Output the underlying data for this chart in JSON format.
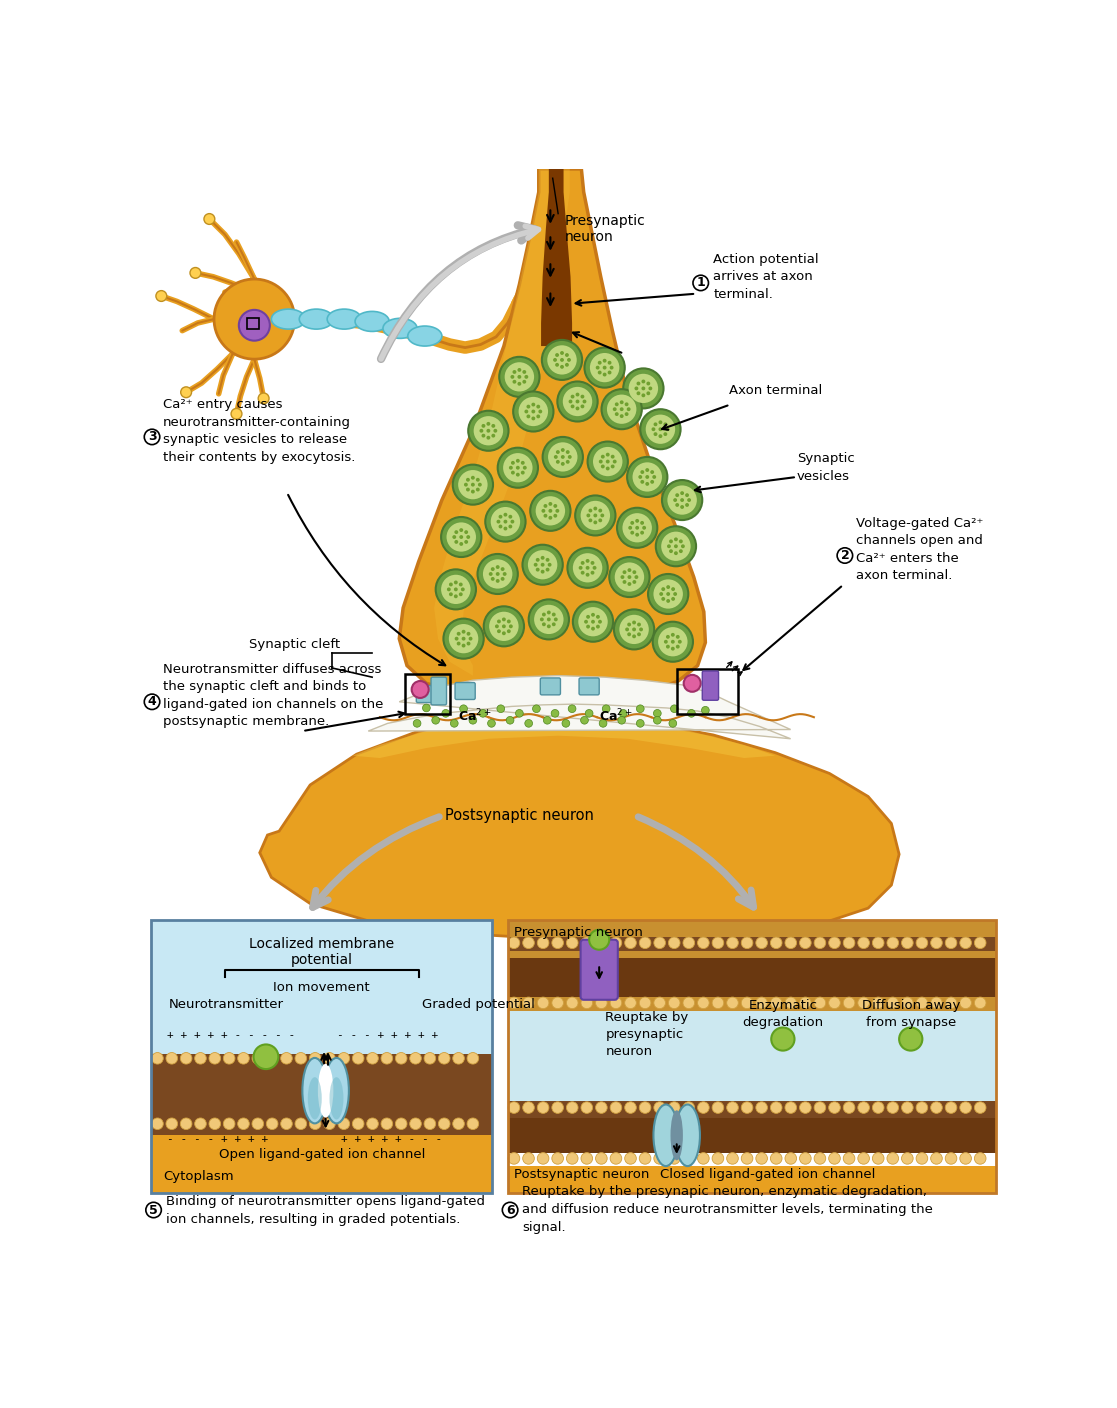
{
  "annotations": {
    "presynaptic_neuron": "Presynaptic\nneuron",
    "action_potential": "Action potential\narrives at axon\nterminal.",
    "axon_terminal": "Axon terminal",
    "synaptic_vesicles": "Synaptic\nvesicles",
    "ca2_entry": "Ca²⁺ entry causes\nneurotransmitter-containing\nsynaptic vesicles to release\ntheir contents by exocytosis.",
    "synaptic_cleft": "Synaptic cleft",
    "voltage_gated": "Voltage-gated Ca²⁺\nchannels open and\nCa²⁺ enters the\naxon terminal.",
    "neurotransmitter_diffuses": "Neurotransmitter diffuses across\nthe synaptic cleft and binds to\nligand-gated ion channels on the\npostsynaptic membrane.",
    "postsynaptic_neuron": "Postsynaptic neuron",
    "localized_membrane": "Localized membrane\npotential",
    "ion_movement": "Ion movement",
    "neurotransmitter_label": "Neurotransmitter",
    "graded_potential": "Graded potential",
    "open_channel": "Open ligand-gated ion channel",
    "cytoplasm": "Cytoplasm",
    "step5": "Binding of neurotransmitter opens ligand-gated\nion channels, resulting in graded potentials.",
    "presynaptic_neuron2": "Presynaptic neuron",
    "reuptake": "Reuptake by\npresynaptic\nneuron",
    "enzymatic": "Enzymatic\ndegradation",
    "diffusion": "Diffusion away\nfrom synapse",
    "postsynaptic_neuron2": "Postsynaptic neuron",
    "closed_channel": "Closed ligand-gated ion channel",
    "step6": "Reuptake by the presynapic neuron, enzymatic degradation,\nand diffusion reduce neurotransmitter levels, terminating the\nsignal."
  },
  "colors": {
    "gold": "#E8A020",
    "gold_dark": "#C87818",
    "gold_mid": "#D09030",
    "vesicle_rim": "#6B9E40",
    "vesicle_fill": "#A0C060",
    "vesicle_light": "#C0D880",
    "vesicle_dot": "#70A030",
    "cleft_white": "#F8F8F4",
    "ca_green": "#88BB44",
    "channel_blue": "#8EC8D0",
    "channel_edge": "#5090A0",
    "pink": "#E060A0",
    "purple": "#9060C0",
    "purple_dark": "#6040A0",
    "brown_mem": "#7A4820",
    "beige_bead": "#F0C878",
    "bead_edge": "#D0A040",
    "cyan_axon": "#50B8C8",
    "cyan_myelin": "#88D4E4",
    "gray_arrow": "#B0B0B0",
    "gray_arrow_dark": "#888888",
    "green_ball": "#90C040",
    "green_ball_edge": "#60A020",
    "box_left_top": "#C8E8F4",
    "box_left_bot": "#E8A020",
    "box_right_gold": "#D8A040",
    "box_right_cleft": "#CCE8F0",
    "box_border_orange": "#C07828"
  }
}
